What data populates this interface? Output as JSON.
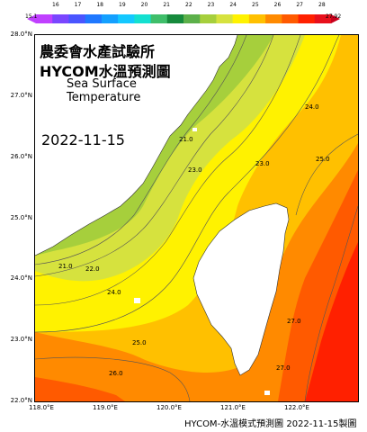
{
  "map": {
    "title_org": "農委會水產試驗所",
    "title_product": "HYCOM水溫預測圖",
    "subtitle_line1": "Sea Surface",
    "subtitle_line2": "Temperature",
    "date": "2022-11-15",
    "footer": "HYCOM-水溫模式預測圖 2022-11-15製圖"
  },
  "legend": {
    "min_label": "15.1",
    "max_label": "27.92",
    "ticks": [
      "16",
      "17",
      "18",
      "19",
      "20",
      "21",
      "22",
      "23",
      "24",
      "25",
      "26",
      "27",
      "28"
    ],
    "colors": [
      "#c040ff",
      "#7a46ff",
      "#4a55ff",
      "#1f78ff",
      "#14a0ff",
      "#14c8ff",
      "#14e0d0",
      "#3fbe6a",
      "#168a3c",
      "#5cb04a",
      "#a6cf3c",
      "#d6e23e",
      "#fff200",
      "#ffc000",
      "#ff8a00",
      "#ff5a00",
      "#ff2000",
      "#e8101c"
    ]
  },
  "axes": {
    "lat_labels": [
      "28.0°N",
      "27.0°N",
      "26.0°N",
      "25.0°N",
      "24.0°N",
      "23.0°N",
      "22.0°N"
    ],
    "lon_labels": [
      "118.0°E",
      "119.0°E",
      "120.0°E",
      "121.0°E",
      "122.0°E"
    ]
  },
  "contours": {
    "labels": [
      "21.0",
      "21.0",
      "22.0",
      "23.0",
      "23.0",
      "24.0",
      "24.0",
      "25.0",
      "25.0",
      "26.0",
      "27.0",
      "27.0"
    ]
  },
  "land": {
    "taiwan": "Taiwan",
    "mainland": "China mainland"
  }
}
